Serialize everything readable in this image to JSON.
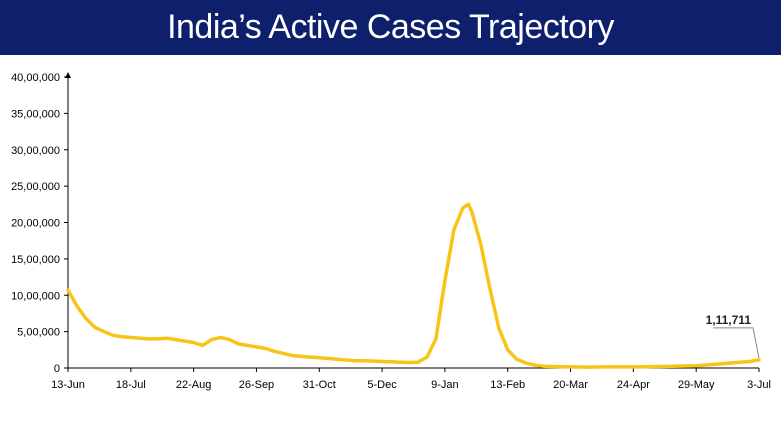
{
  "header": {
    "title": "India’s Active Cases Trajectory",
    "background": "#0e1f6b",
    "text_color": "#ffffff"
  },
  "chart_data": {
    "type": "line",
    "title": "India’s Active Cases Trajectory",
    "xlabel": "",
    "ylabel": "",
    "ylim": [
      0,
      4000000
    ],
    "grid": false,
    "legend": "none",
    "line_color": "#f5c518",
    "x_tick_labels": [
      "13-Jun",
      "18-Jul",
      "22-Aug",
      "26-Sep",
      "31-Oct",
      "5-Dec",
      "9-Jan",
      "13-Feb",
      "20-Mar",
      "24-Apr",
      "29-May",
      "3-Jul"
    ],
    "y_tick_labels": [
      "0",
      "5,00,000",
      "10,00,000",
      "15,00,000",
      "20,00,000",
      "25,00,000",
      "30,00,000",
      "35,00,000",
      "40,00,000"
    ],
    "y_tick_values": [
      0,
      500000,
      1000000,
      1500000,
      2000000,
      2500000,
      3000000,
      3500000,
      4000000
    ],
    "series": [
      {
        "x": [
          "13-Jun",
          "18-Jun",
          "23-Jun",
          "28-Jun",
          "3-Jul",
          "8-Jul",
          "13-Jul",
          "18-Jul",
          "23-Jul",
          "28-Jul",
          "2-Aug",
          "7-Aug",
          "12-Aug",
          "17-Aug",
          "22-Aug",
          "27-Aug",
          "1-Sep",
          "6-Sep",
          "11-Sep",
          "16-Sep",
          "21-Sep",
          "26-Sep",
          "1-Oct",
          "6-Oct",
          "11-Oct",
          "16-Oct",
          "21-Oct",
          "26-Oct",
          "31-Oct",
          "5-Nov",
          "10-Nov",
          "15-Nov",
          "20-Nov",
          "25-Nov",
          "30-Nov",
          "5-Dec",
          "10-Dec",
          "15-Dec",
          "20-Dec",
          "25-Dec",
          "30-Dec",
          "4-Jan",
          "9-Jan",
          "14-Jan",
          "19-Jan",
          "22-Jan",
          "24-Jan",
          "29-Jan",
          "3-Feb",
          "8-Feb",
          "13-Feb",
          "18-Feb",
          "23-Feb",
          "28-Feb",
          "5-Mar",
          "10-Mar",
          "20-Mar",
          "30-Mar",
          "9-Apr",
          "24-Apr",
          "9-May",
          "29-May",
          "8-Jun",
          "18-Jun",
          "28-Jun",
          "3-Jul"
        ],
        "values": [
          1070000,
          850000,
          680000,
          560000,
          500000,
          450000,
          430000,
          420000,
          410000,
          400000,
          400000,
          410000,
          390000,
          370000,
          350000,
          310000,
          390000,
          420000,
          390000,
          330000,
          310000,
          290000,
          270000,
          230000,
          200000,
          170000,
          160000,
          150000,
          140000,
          130000,
          120000,
          110000,
          100000,
          100000,
          95000,
          90000,
          85000,
          80000,
          75000,
          80000,
          150000,
          400000,
          1200000,
          1900000,
          2200000,
          2250000,
          2150000,
          1700000,
          1100000,
          550000,
          250000,
          120000,
          70000,
          40000,
          25000,
          20000,
          15000,
          12000,
          15000,
          15000,
          20000,
          30000,
          50000,
          70000,
          90000,
          111711
        ]
      }
    ],
    "annotation": {
      "label": "1,11,711",
      "x": "3-Jul",
      "y": 111711
    }
  }
}
